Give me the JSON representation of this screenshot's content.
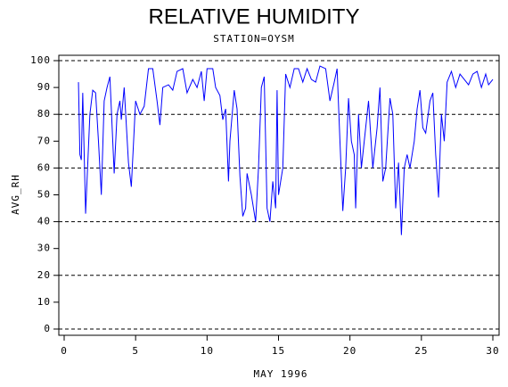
{
  "chart_data": {
    "type": "line",
    "title": "RELATIVE HUMIDITY",
    "subtitle": "STATION=OYSM",
    "x_label": "MAY 1996",
    "y_label": "AVG_RH",
    "xlim": [
      0,
      30
    ],
    "xticks": [
      0,
      5,
      10,
      15,
      20,
      25,
      30
    ],
    "ylim": [
      0,
      100
    ],
    "yticks": [
      0,
      10,
      20,
      30,
      40,
      50,
      60,
      70,
      80,
      90,
      100
    ],
    "grid_lines": [
      0,
      20,
      40,
      60,
      80,
      100
    ],
    "series": [
      {
        "color": "#0000ff",
        "x": [
          1.0,
          1.1,
          1.2,
          1.3,
          1.5,
          1.8,
          2.0,
          2.2,
          2.4,
          2.6,
          2.8,
          3.0,
          3.2,
          3.5,
          3.7,
          3.9,
          4.0,
          4.2,
          4.5,
          4.7,
          5.0,
          5.3,
          5.6,
          5.9,
          6.2,
          6.5,
          6.7,
          6.9,
          7.3,
          7.6,
          7.9,
          8.3,
          8.6,
          9.0,
          9.3,
          9.6,
          9.8,
          10.0,
          10.4,
          10.6,
          10.9,
          11.1,
          11.3,
          11.5,
          11.6,
          11.9,
          12.1,
          12.3,
          12.5,
          12.7,
          12.8,
          13.1,
          13.4,
          13.6,
          13.8,
          14.0,
          14.2,
          14.4,
          14.6,
          14.8,
          14.9,
          15.0,
          15.3,
          15.5,
          15.8,
          16.1,
          16.4,
          16.7,
          17.0,
          17.3,
          17.6,
          17.9,
          18.3,
          18.6,
          18.9,
          19.1,
          19.3,
          19.5,
          19.7,
          19.9,
          20.1,
          20.3,
          20.4,
          20.6,
          20.8,
          21.0,
          21.3,
          21.6,
          21.9,
          22.1,
          22.3,
          22.5,
          22.8,
          23.0,
          23.2,
          23.4,
          23.6,
          23.8,
          24.0,
          24.2,
          24.5,
          24.7,
          24.9,
          25.1,
          25.3,
          25.6,
          25.8,
          26.0,
          26.2,
          26.4,
          26.6,
          26.8,
          27.1,
          27.4,
          27.7,
          28.0,
          28.3,
          28.6,
          28.9,
          29.2,
          29.5,
          29.7,
          30.0
        ],
        "values": [
          92,
          65,
          63,
          88,
          43,
          80,
          89,
          88,
          70,
          50,
          85,
          90,
          94,
          58,
          80,
          85,
          78,
          90,
          62,
          53,
          85,
          80,
          83,
          97,
          97,
          85,
          76,
          90,
          91,
          89,
          96,
          97,
          88,
          93,
          90,
          96,
          85,
          97,
          97,
          90,
          87,
          78,
          82,
          55,
          70,
          89,
          82,
          57,
          42,
          45,
          58,
          50,
          40,
          60,
          90,
          94,
          45,
          40,
          55,
          45,
          89,
          50,
          60,
          95,
          90,
          97,
          97,
          92,
          97,
          93,
          92,
          98,
          97,
          85,
          92,
          97,
          70,
          44,
          60,
          86,
          70,
          65,
          45,
          80,
          60,
          70,
          85,
          60,
          75,
          90,
          55,
          60,
          86,
          80,
          45,
          62,
          35,
          60,
          65,
          60,
          70,
          82,
          89,
          75,
          73,
          85,
          88,
          65,
          49,
          80,
          70,
          92,
          96,
          90,
          95,
          93,
          91,
          95,
          96,
          90,
          95,
          91,
          93
        ]
      }
    ]
  }
}
